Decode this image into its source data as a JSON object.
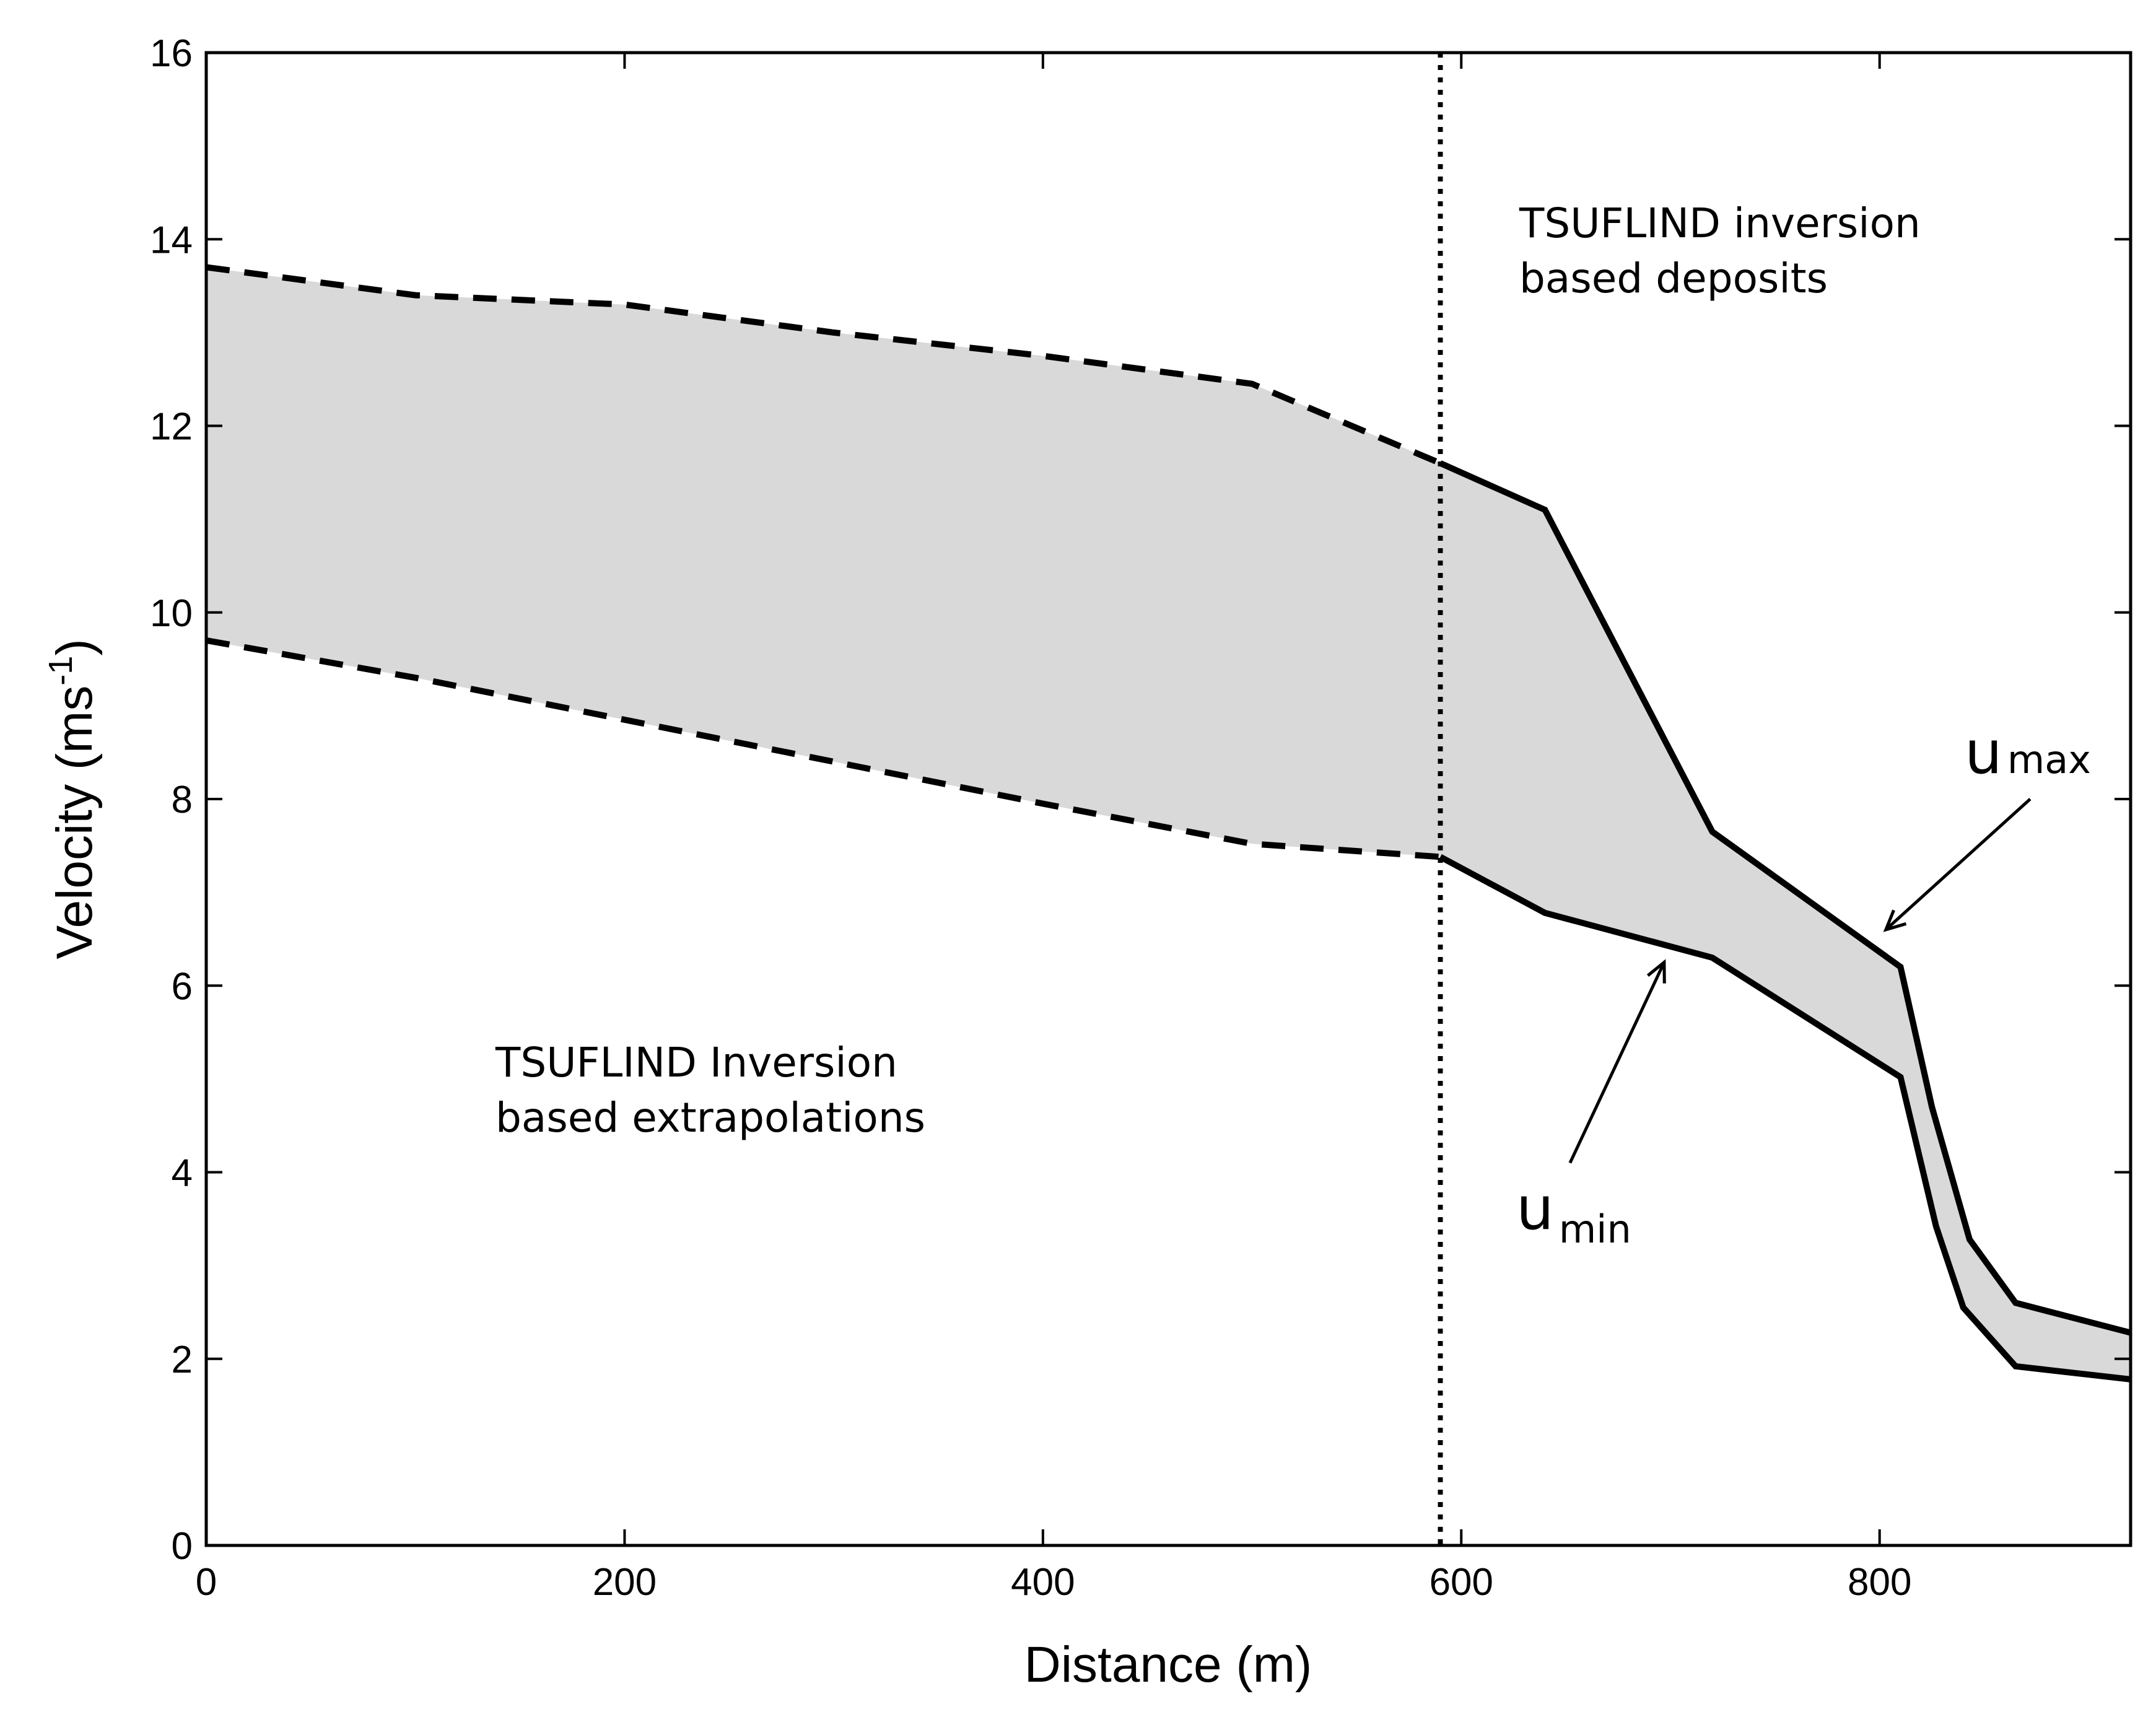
{
  "chart_data": {
    "type": "area",
    "xlabel": "Distance (m)",
    "ylabel_main": "Velocity (ms",
    "ylabel_sup": "-1",
    "ylabel_close": ")",
    "xlim": [
      0,
      920
    ],
    "ylim": [
      0,
      16
    ],
    "xticks": [
      0,
      200,
      400,
      600,
      800
    ],
    "yticks": [
      0,
      2,
      4,
      6,
      8,
      10,
      12,
      14,
      16
    ],
    "grid": false,
    "fill_color": "#d9d9d9",
    "line_color": "#000000",
    "vertical_line_x": 590,
    "series": [
      {
        "key": "u_max",
        "label_main": "u",
        "label_sub": "max",
        "extrapolated": [
          [
            0,
            13.7
          ],
          [
            100,
            13.4
          ],
          [
            200,
            13.3
          ],
          [
            300,
            13.0
          ],
          [
            400,
            12.75
          ],
          [
            500,
            12.45
          ],
          [
            590,
            11.6
          ]
        ],
        "inverted": [
          [
            590,
            11.6
          ],
          [
            640,
            11.1
          ],
          [
            720,
            7.65
          ],
          [
            810,
            6.2
          ],
          [
            825,
            4.7
          ],
          [
            843,
            3.28
          ],
          [
            865,
            2.6
          ],
          [
            920,
            2.28
          ]
        ]
      },
      {
        "key": "u_min",
        "label_main": "u",
        "label_sub": "min",
        "extrapolated": [
          [
            0,
            9.7
          ],
          [
            100,
            9.3
          ],
          [
            200,
            8.85
          ],
          [
            300,
            8.4
          ],
          [
            400,
            7.95
          ],
          [
            500,
            7.52
          ],
          [
            590,
            7.38
          ]
        ],
        "inverted": [
          [
            590,
            7.38
          ],
          [
            640,
            6.78
          ],
          [
            720,
            6.3
          ],
          [
            810,
            5.02
          ],
          [
            827,
            3.42
          ],
          [
            840,
            2.55
          ],
          [
            865,
            1.92
          ],
          [
            920,
            1.78
          ]
        ]
      }
    ],
    "annotations": {
      "left_line1": "TSUFLIND Inversion",
      "left_line2": "based extrapolations",
      "right_line1": "TSUFLIND inversion",
      "right_line2": "based deposits"
    },
    "arrows": {
      "u_max_from": [
        872,
        8.0
      ],
      "u_max_to": [
        803,
        6.6
      ],
      "u_min_from": [
        652,
        4.1
      ],
      "u_min_to": [
        697,
        6.25
      ]
    }
  }
}
